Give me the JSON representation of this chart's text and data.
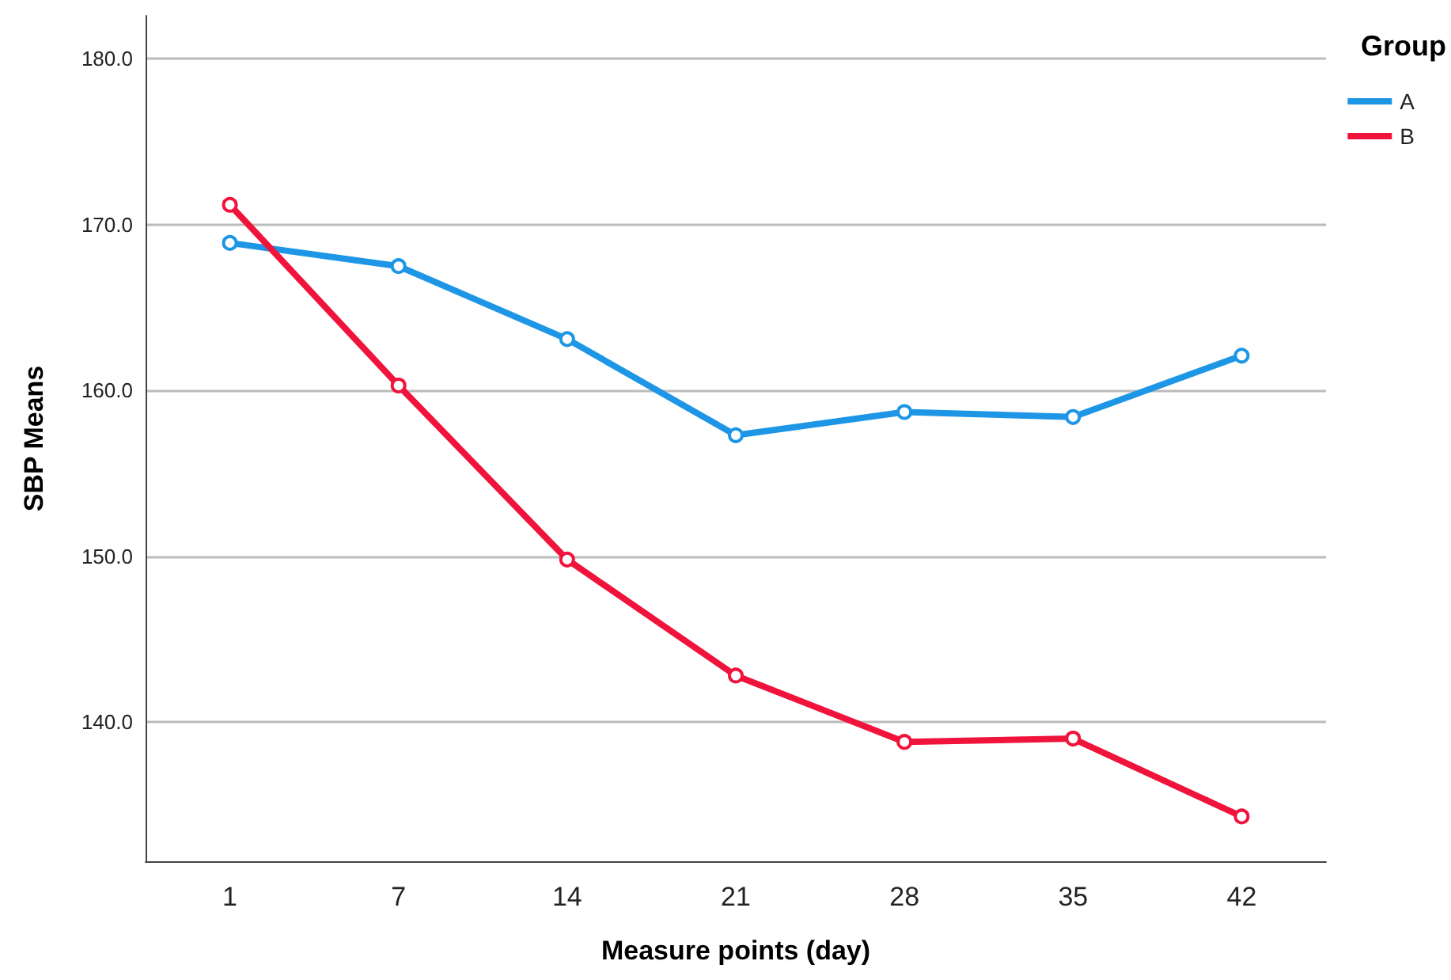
{
  "chart_data": {
    "type": "line",
    "xlabel": "Measure points (day)",
    "ylabel": "SBP Means",
    "legend_title": "Group",
    "categories": [
      "1",
      "7",
      "14",
      "21",
      "28",
      "35",
      "42"
    ],
    "series": [
      {
        "name": "A",
        "color": "#1e96e6",
        "values": [
          168.9,
          167.5,
          163.1,
          157.3,
          158.7,
          158.4,
          162.1
        ]
      },
      {
        "name": "B",
        "color": "#f0143c",
        "values": [
          171.2,
          160.3,
          149.8,
          142.8,
          138.8,
          139.0,
          134.3
        ]
      }
    ],
    "ylim": [
      131.6,
      182.6
    ],
    "yticks": [
      {
        "value": 140,
        "label": "140.0"
      },
      {
        "value": 150,
        "label": "150.0"
      },
      {
        "value": 160,
        "label": "160.0"
      },
      {
        "value": 170,
        "label": "170.0"
      },
      {
        "value": 180,
        "label": "180.0"
      }
    ],
    "grid": "y",
    "legend": "top right",
    "marker": "circle",
    "line_style": "solid"
  }
}
